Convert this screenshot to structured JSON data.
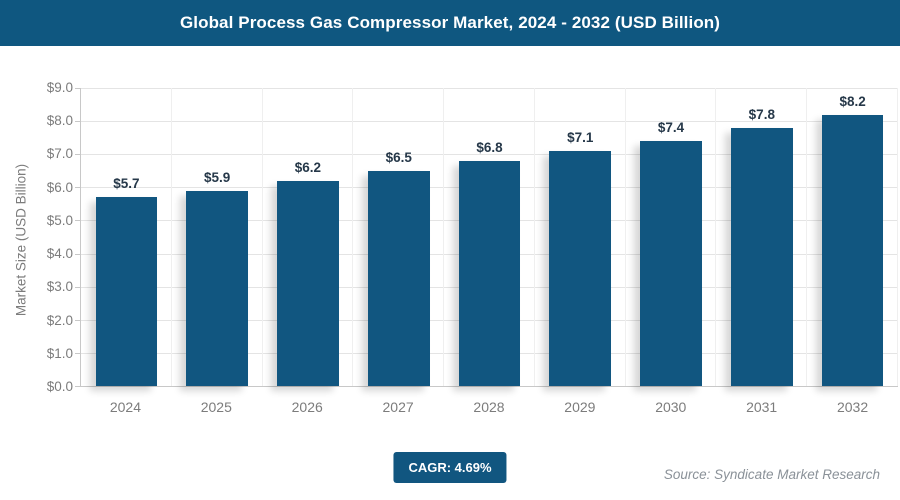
{
  "header": {
    "title": "Global Process Gas Compressor Market, 2024 - 2032 (USD Billion)"
  },
  "chart_data": {
    "type": "bar",
    "title": "Global Process Gas Compressor Market, 2024 - 2032 (USD Billion)",
    "categories": [
      "2024",
      "2025",
      "2026",
      "2027",
      "2028",
      "2029",
      "2030",
      "2031",
      "2032"
    ],
    "values": [
      5.7,
      5.9,
      6.2,
      6.5,
      6.8,
      7.1,
      7.4,
      7.8,
      8.2
    ],
    "value_labels": [
      "$5.7",
      "$5.9",
      "$6.2",
      "$6.5",
      "$6.8",
      "$7.1",
      "$7.4",
      "$7.8",
      "$8.2"
    ],
    "xlabel": "",
    "ylabel": "Market Size (USD Billion)",
    "ylim": [
      0,
      9
    ],
    "ytick_step": 1,
    "ytick_labels": [
      "$0.0",
      "$1.0",
      "$2.0",
      "$3.0",
      "$4.0",
      "$5.0",
      "$6.0",
      "$7.0",
      "$8.0",
      "$9.0"
    ],
    "grid": true,
    "legend": false
  },
  "footer": {
    "cagr_label": "CAGR: 4.69%",
    "source": "Source: Syndicate Market Research"
  },
  "colors": {
    "bar": "#115680",
    "header_bg": "#0F5780",
    "badge_bg": "#115680",
    "value_label": "#263849",
    "axis_text": "#7C7C7C",
    "grid": "#E4E4E4",
    "grid_vertical": "#EFEFEF",
    "axis_line": "#C8C8C8",
    "source_text": "#8A9198"
  }
}
